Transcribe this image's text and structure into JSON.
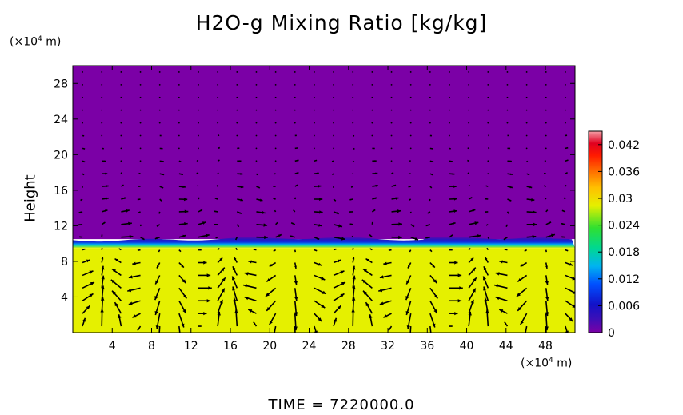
{
  "chart_data": {
    "type": "heatmap",
    "title": "H2O-g Mixing Ratio [kg/kg]",
    "ylabel": "Height",
    "x_unit": "(×10⁴ m)",
    "y_unit": "(×10⁴ m)",
    "x_ticks": [
      4,
      8,
      12,
      16,
      20,
      24,
      28,
      32,
      36,
      40,
      44,
      48
    ],
    "y_ticks": [
      4,
      8,
      12,
      16,
      20,
      24,
      28
    ],
    "xlim": [
      0,
      51
    ],
    "ylim": [
      0,
      30
    ],
    "colorbar_ticks": [
      "0",
      "0.006",
      "0.012",
      "0.018",
      "0.024",
      "0.03",
      "0.036",
      "0.042"
    ],
    "colorbar_range": [
      0,
      0.045
    ],
    "fields": {
      "upper_layer": {
        "height_range": [
          10.5,
          30
        ],
        "value": 0.0
      },
      "transition_layer": {
        "height_range": [
          9.5,
          10.5
        ],
        "value_range": [
          0.0,
          0.024
        ]
      },
      "lower_layer": {
        "height_range": [
          0,
          9.5
        ],
        "value": 0.029
      }
    },
    "overlay": "velocity vectors (arrows)",
    "colors": {
      "low": "#7b00a6",
      "high": "#e5f000",
      "transition": "#1a2bd6"
    }
  },
  "footer": {
    "time_label": "TIME  =  7220000.0"
  }
}
